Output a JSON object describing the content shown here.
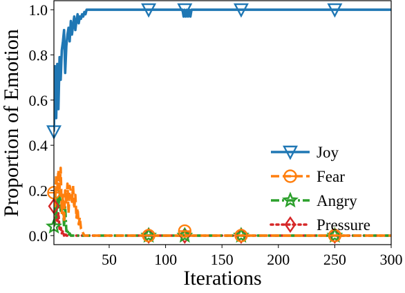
{
  "chart_data": {
    "type": "line",
    "title": "",
    "xlabel": "Iterations",
    "ylabel": "Proportion of Emotion",
    "xlim": [
      1,
      300
    ],
    "ylim": [
      -0.04,
      1.04
    ],
    "xticks": [
      50,
      100,
      150,
      200,
      250,
      300
    ],
    "yticks": [
      0.0,
      0.2,
      0.4,
      0.6,
      0.8,
      1.0
    ],
    "xtick_labels": [
      "50",
      "100",
      "150",
      "200",
      "250",
      "300"
    ],
    "ytick_labels": [
      "0.0",
      "0.2",
      "0.4",
      "0.6",
      "0.8",
      "1.0"
    ],
    "grid": false,
    "legend_position": "lower-right",
    "series": [
      {
        "name": "Joy",
        "color": "#1f77b4",
        "linestyle": "solid",
        "marker": "triangle-down-open",
        "x": [
          1,
          2,
          3,
          4,
          5,
          6,
          7,
          8,
          9,
          10,
          11,
          12,
          13,
          14,
          15,
          16,
          17,
          18,
          19,
          20,
          21,
          22,
          23,
          24,
          25,
          26,
          27,
          28,
          29,
          30,
          115,
          116,
          117,
          118,
          119,
          120,
          121,
          122,
          123,
          124,
          300
        ],
        "y": [
          0.46,
          0.75,
          0.52,
          0.76,
          0.56,
          0.79,
          0.69,
          0.82,
          0.86,
          0.91,
          0.72,
          0.84,
          0.89,
          0.92,
          0.86,
          0.95,
          0.89,
          0.93,
          0.97,
          0.91,
          0.95,
          0.98,
          0.94,
          0.97,
          0.96,
          0.98,
          0.97,
          0.99,
          0.98,
          1.0,
          1.0,
          0.97,
          1.0,
          0.97,
          1.0,
          0.97,
          1.0,
          0.97,
          1.0,
          1.0,
          1.0
        ],
        "marker_x": [
          1,
          85,
          117,
          167,
          250
        ]
      },
      {
        "name": "Fear",
        "color": "#ff7f0e",
        "linestyle": "dashed",
        "marker": "circle-minus-open",
        "x": [
          1,
          2,
          3,
          4,
          5,
          6,
          7,
          8,
          9,
          10,
          11,
          12,
          13,
          14,
          15,
          16,
          17,
          18,
          19,
          20,
          21,
          22,
          23,
          24,
          25,
          26,
          27,
          28,
          116,
          117,
          118,
          119,
          120,
          121,
          122,
          300
        ],
        "y": [
          0.19,
          0.13,
          0.27,
          0.2,
          0.29,
          0.21,
          0.3,
          0.1,
          0.18,
          0.06,
          0.2,
          0.14,
          0.23,
          0.1,
          0.22,
          0.2,
          0.15,
          0.22,
          0.12,
          0.18,
          0.08,
          0.12,
          0.05,
          0.08,
          0.03,
          0.02,
          0.01,
          0.0,
          0.0,
          0.02,
          0.0,
          0.02,
          0.0,
          0.02,
          0.0,
          0.0
        ],
        "marker_x": [
          1,
          85,
          117,
          167,
          250
        ]
      },
      {
        "name": "Angry",
        "color": "#2ca02c",
        "linestyle": "dashdot",
        "marker": "star-open",
        "x": [
          1,
          2,
          3,
          4,
          5,
          6,
          7,
          8,
          9,
          10,
          11,
          12,
          13,
          14,
          15,
          16,
          17,
          18,
          300
        ],
        "y": [
          0.04,
          0.19,
          0.08,
          0.17,
          0.12,
          0.2,
          0.11,
          0.16,
          0.13,
          0.04,
          0.13,
          0.02,
          0.03,
          0.0,
          0.01,
          0.0,
          0.0,
          0.0,
          0.0
        ],
        "marker_x": [
          1,
          85,
          117,
          167,
          250
        ]
      },
      {
        "name": "Pressure",
        "color": "#d62728",
        "linestyle": "dotted",
        "marker": "diamond-open",
        "x": [
          1,
          2,
          3,
          4,
          5,
          6,
          7,
          8,
          9,
          10,
          11,
          12,
          300
        ],
        "y": [
          0.13,
          0.05,
          0.11,
          0.06,
          0.1,
          0.03,
          0.04,
          0.01,
          0.02,
          0.0,
          0.01,
          0.0,
          0.0
        ],
        "marker_x": [
          1,
          85,
          117,
          167,
          250
        ]
      }
    ]
  }
}
